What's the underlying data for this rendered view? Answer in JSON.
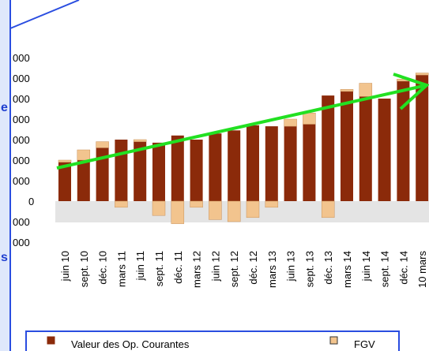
{
  "chart_data": {
    "type": "bar",
    "side_fragments": [
      "e",
      "s"
    ],
    "categories": [
      "juin 10",
      "sept. 10",
      "déc. 10",
      "mars 11",
      "juin 11",
      "sept. 11",
      "déc. 11",
      "mars 12",
      "juin 12",
      "sept. 12",
      "déc. 12",
      "mars 13",
      "juin 13",
      "sept. 13",
      "déc. 13",
      "mars 14",
      "juin 14",
      "sept. 14",
      "déc. 14",
      "10 mars"
    ],
    "series": [
      {
        "name": "Valeur des Op. Courantes",
        "color": "#8b2a0a",
        "values": [
          1900,
          2000,
          2600,
          3000,
          2900,
          2850,
          3200,
          3000,
          3300,
          3450,
          3700,
          3650,
          3650,
          3750,
          5150,
          5350,
          5100,
          5000,
          5850,
          6150
        ]
      },
      {
        "name": "FGV",
        "color": "#f2c48e",
        "values": [
          100,
          500,
          300,
          -300,
          100,
          -700,
          -1100,
          -300,
          -900,
          -1000,
          -800,
          -300,
          350,
          550,
          -800,
          100,
          650,
          0,
          100,
          100
        ]
      }
    ],
    "ylim": [
      -2100,
      7200
    ],
    "yticks": [
      {
        "value": 7000,
        "label": "000"
      },
      {
        "value": 6000,
        "label": "000"
      },
      {
        "value": 5000,
        "label": "000"
      },
      {
        "value": 4000,
        "label": "000"
      },
      {
        "value": 3000,
        "label": "000"
      },
      {
        "value": 2000,
        "label": "000"
      },
      {
        "value": 1000,
        "label": "000"
      },
      0,
      {
        "value": -1000,
        "label": "000"
      },
      {
        "value": -2000,
        "label": "000"
      }
    ],
    "stacked": true
  }
}
